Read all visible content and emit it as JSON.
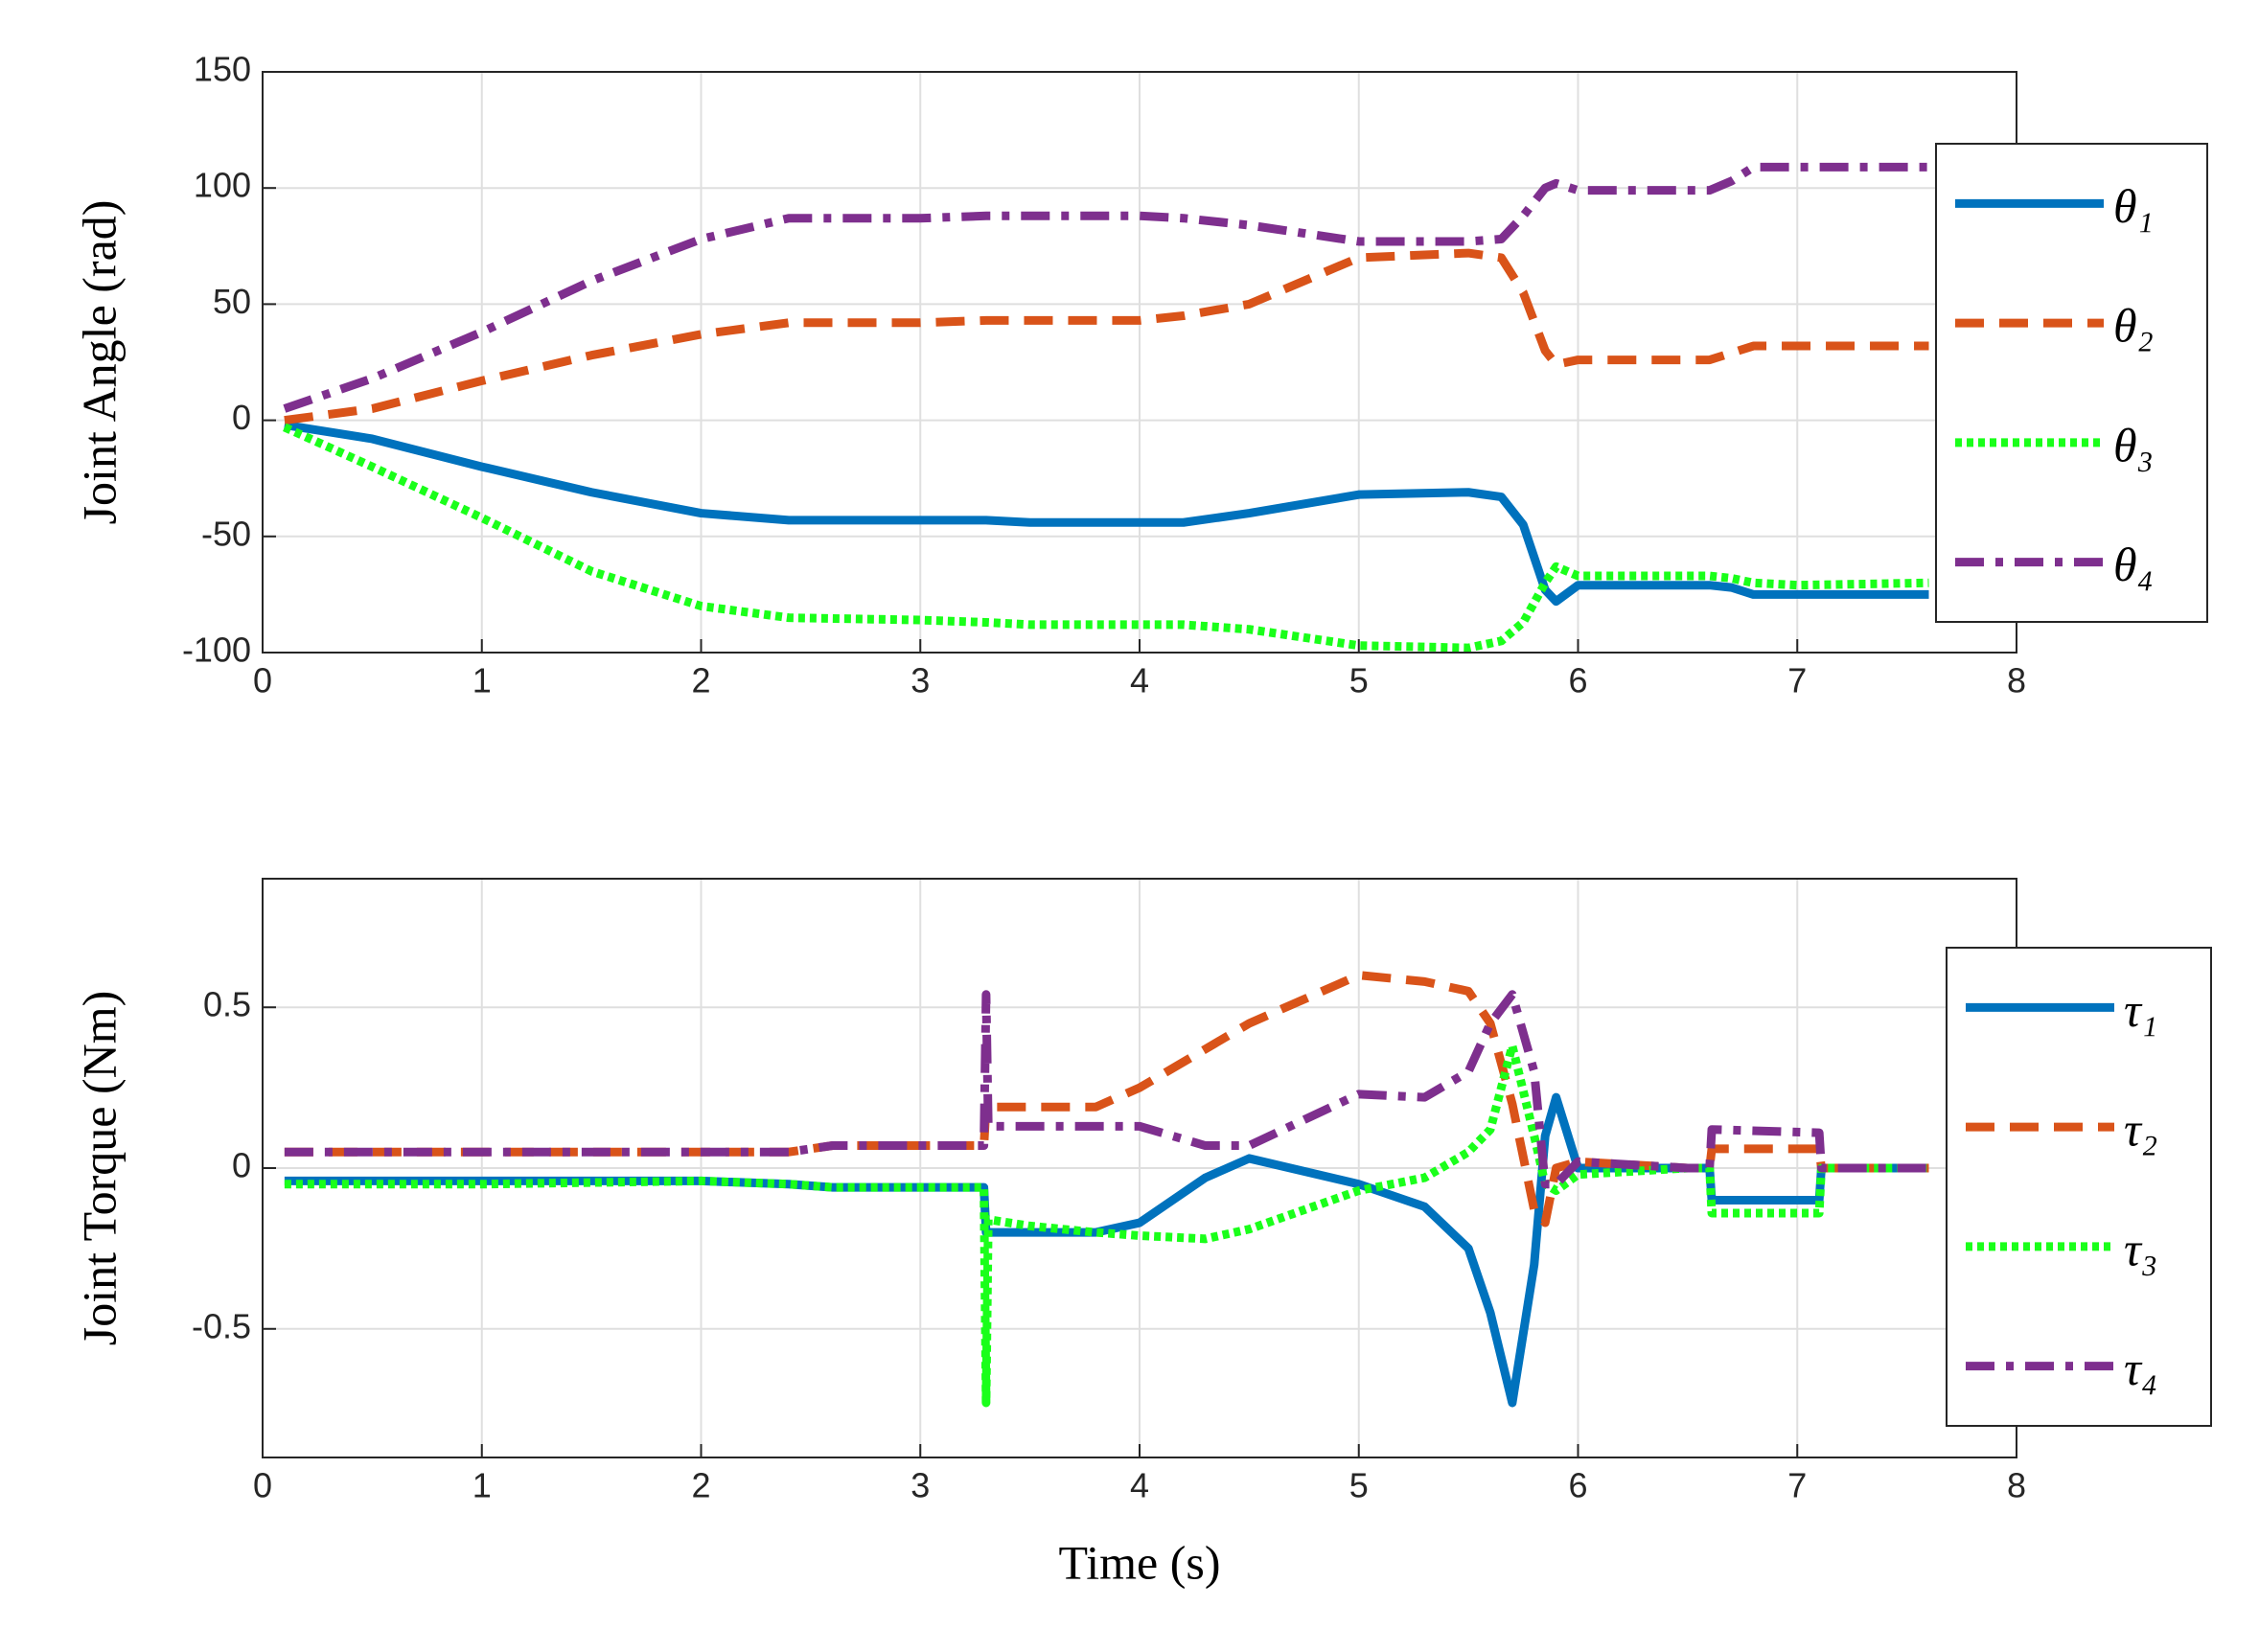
{
  "chart_data": [
    {
      "type": "line",
      "y_label": "Joint Angle (rad)",
      "xlim": [
        0,
        8
      ],
      "xticks": [
        0,
        1,
        2,
        3,
        4,
        5,
        6,
        7,
        8
      ],
      "ylim": [
        -100,
        150
      ],
      "yticks": [
        -100,
        -50,
        0,
        50,
        100,
        150
      ],
      "grid": true,
      "legend": "right",
      "x": [
        0.1,
        0.5,
        1,
        1.5,
        2,
        2.4,
        3,
        3.3,
        3.5,
        4,
        4.2,
        4.5,
        5,
        5.5,
        5.65,
        5.75,
        5.85,
        5.9,
        6,
        6.6,
        6.7,
        6.8,
        7,
        7.6
      ],
      "series": [
        {
          "name": "θ₁",
          "color": "#0072bd",
          "dash": "solid",
          "values": [
            -2,
            -8,
            -20,
            -31,
            -40,
            -43,
            -43,
            -43,
            -44,
            -44,
            -44,
            -40,
            -32,
            -31,
            -33,
            -45,
            -73,
            -78,
            -71,
            -71,
            -72,
            -75,
            -75,
            -75
          ]
        },
        {
          "name": "θ₂",
          "color": "#d95319",
          "dash": "dashed",
          "values": [
            0,
            5,
            17,
            28,
            37,
            42,
            42,
            43,
            43,
            43,
            45,
            50,
            70,
            72,
            70,
            55,
            30,
            24,
            26,
            26,
            29,
            32,
            32,
            32
          ]
        },
        {
          "name": "θ₃",
          "color": "#1aff1a",
          "dash": "dotted",
          "values": [
            -3,
            -20,
            -42,
            -65,
            -80,
            -85,
            -86,
            -87,
            -88,
            -88,
            -88,
            -90,
            -97,
            -98,
            -95,
            -87,
            -70,
            -63,
            -67,
            -67,
            -68,
            -70,
            -71,
            -70
          ]
        },
        {
          "name": "θ₄",
          "color": "#7e2f8e",
          "dash": "dashdot",
          "values": [
            5,
            18,
            38,
            60,
            78,
            87,
            87,
            88,
            88,
            88,
            87,
            84,
            77,
            77,
            78,
            88,
            100,
            102,
            99,
            99,
            103,
            109,
            109,
            109
          ]
        }
      ]
    },
    {
      "type": "line",
      "y_label": "Joint Torque (Nm)",
      "x_label": "Time (s)",
      "xlim": [
        0,
        8
      ],
      "xticks": [
        0,
        1,
        2,
        3,
        4,
        5,
        6,
        7,
        8
      ],
      "ylim": [
        -0.9,
        0.9
      ],
      "yticks": [
        -0.5,
        0,
        0.5
      ],
      "grid": true,
      "legend": "right",
      "x": [
        0.1,
        1,
        2,
        2.4,
        2.6,
        3.29,
        3.3,
        3.31,
        3.5,
        3.8,
        4,
        4.3,
        4.5,
        5,
        5.3,
        5.5,
        5.6,
        5.7,
        5.8,
        5.85,
        5.9,
        6,
        6.5,
        6.6,
        6.61,
        7.1,
        7.11,
        7.6
      ],
      "series": [
        {
          "name": "τ₁",
          "color": "#0072bd",
          "dash": "solid",
          "values": [
            -0.04,
            -0.04,
            -0.04,
            -0.05,
            -0.06,
            -0.06,
            -0.2,
            -0.2,
            -0.2,
            -0.2,
            -0.17,
            -0.03,
            0.03,
            -0.05,
            -0.12,
            -0.25,
            -0.45,
            -0.73,
            -0.3,
            0.1,
            0.22,
            0,
            0,
            0,
            -0.1,
            -0.1,
            0,
            0
          ]
        },
        {
          "name": "τ₂",
          "color": "#d95319",
          "dash": "dashed",
          "values": [
            0.05,
            0.05,
            0.05,
            0.05,
            0.07,
            0.07,
            0.19,
            0.19,
            0.19,
            0.19,
            0.25,
            0.37,
            0.45,
            0.6,
            0.58,
            0.55,
            0.45,
            0.2,
            -0.13,
            -0.17,
            0,
            0.02,
            0,
            0,
            0.06,
            0.06,
            0,
            0
          ]
        },
        {
          "name": "τ₃",
          "color": "#1aff1a",
          "dash": "dotted",
          "values": [
            -0.05,
            -0.05,
            -0.04,
            -0.05,
            -0.06,
            -0.06,
            -0.73,
            -0.16,
            -0.18,
            -0.2,
            -0.21,
            -0.22,
            -0.19,
            -0.07,
            -0.03,
            0.05,
            0.12,
            0.38,
            0.1,
            -0.05,
            -0.07,
            -0.02,
            0,
            0,
            -0.14,
            -0.14,
            0,
            0
          ]
        },
        {
          "name": "τ₄",
          "color": "#7e2f8e",
          "dash": "dashdot",
          "values": [
            0.05,
            0.05,
            0.05,
            0.05,
            0.07,
            0.07,
            0.54,
            0.13,
            0.13,
            0.13,
            0.13,
            0.07,
            0.07,
            0.23,
            0.22,
            0.3,
            0.45,
            0.54,
            0.3,
            -0.05,
            -0.05,
            0.02,
            0,
            0,
            0.12,
            0.11,
            0,
            0
          ]
        }
      ]
    }
  ]
}
